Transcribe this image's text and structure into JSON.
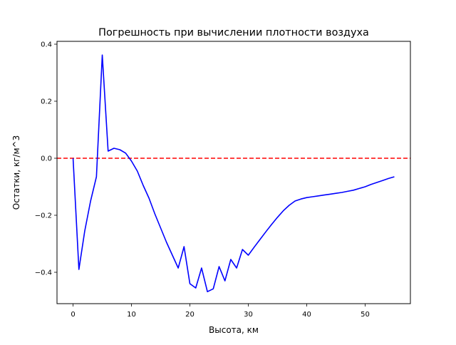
{
  "chart_data": {
    "type": "line",
    "title": "Погрешность при вычислении плотности воздуха",
    "xlabel": "Высота, км",
    "ylabel": "Остатки, кг/м^3",
    "xlim": [
      -2.75,
      57.75
    ],
    "ylim": [
      -0.51,
      0.41
    ],
    "xticks": [
      0,
      10,
      20,
      30,
      40,
      50
    ],
    "xtick_labels": [
      "0",
      "10",
      "20",
      "30",
      "40",
      "50"
    ],
    "yticks": [
      -0.4,
      -0.2,
      0.0,
      0.2,
      0.4
    ],
    "ytick_labels": [
      "−0.4",
      "−0.2",
      "0.0",
      "0.2",
      "0.4"
    ],
    "grid": false,
    "series": [
      {
        "color": "#0000ff",
        "x": [
          0,
          1,
          2,
          3,
          4,
          5,
          6,
          7,
          8,
          9,
          10,
          11,
          12,
          13,
          14,
          15,
          16,
          17,
          18,
          19,
          20,
          21,
          22,
          23,
          24,
          25,
          26,
          27,
          28,
          29,
          30,
          31,
          32,
          33,
          34,
          35,
          36,
          37,
          38,
          39,
          40,
          41,
          42,
          43,
          44,
          45,
          46,
          47,
          48,
          49,
          50,
          51,
          52,
          53,
          54,
          55
        ],
        "y": [
          0.0,
          -0.39,
          -0.255,
          -0.15,
          -0.065,
          0.362,
          0.025,
          0.035,
          0.03,
          0.018,
          -0.01,
          -0.045,
          -0.095,
          -0.14,
          -0.195,
          -0.245,
          -0.295,
          -0.34,
          -0.385,
          -0.31,
          -0.44,
          -0.455,
          -0.385,
          -0.468,
          -0.458,
          -0.38,
          -0.43,
          -0.355,
          -0.385,
          -0.32,
          -0.34,
          -0.312,
          -0.285,
          -0.258,
          -0.232,
          -0.207,
          -0.184,
          -0.165,
          -0.15,
          -0.143,
          -0.138,
          -0.135,
          -0.132,
          -0.129,
          -0.126,
          -0.123,
          -0.12,
          -0.116,
          -0.112,
          -0.106,
          -0.1,
          -0.092,
          -0.085,
          -0.078,
          -0.071,
          -0.065
        ]
      }
    ],
    "reference_line": {
      "y": 0.0,
      "color": "#ff0000",
      "style": "dashed"
    }
  }
}
